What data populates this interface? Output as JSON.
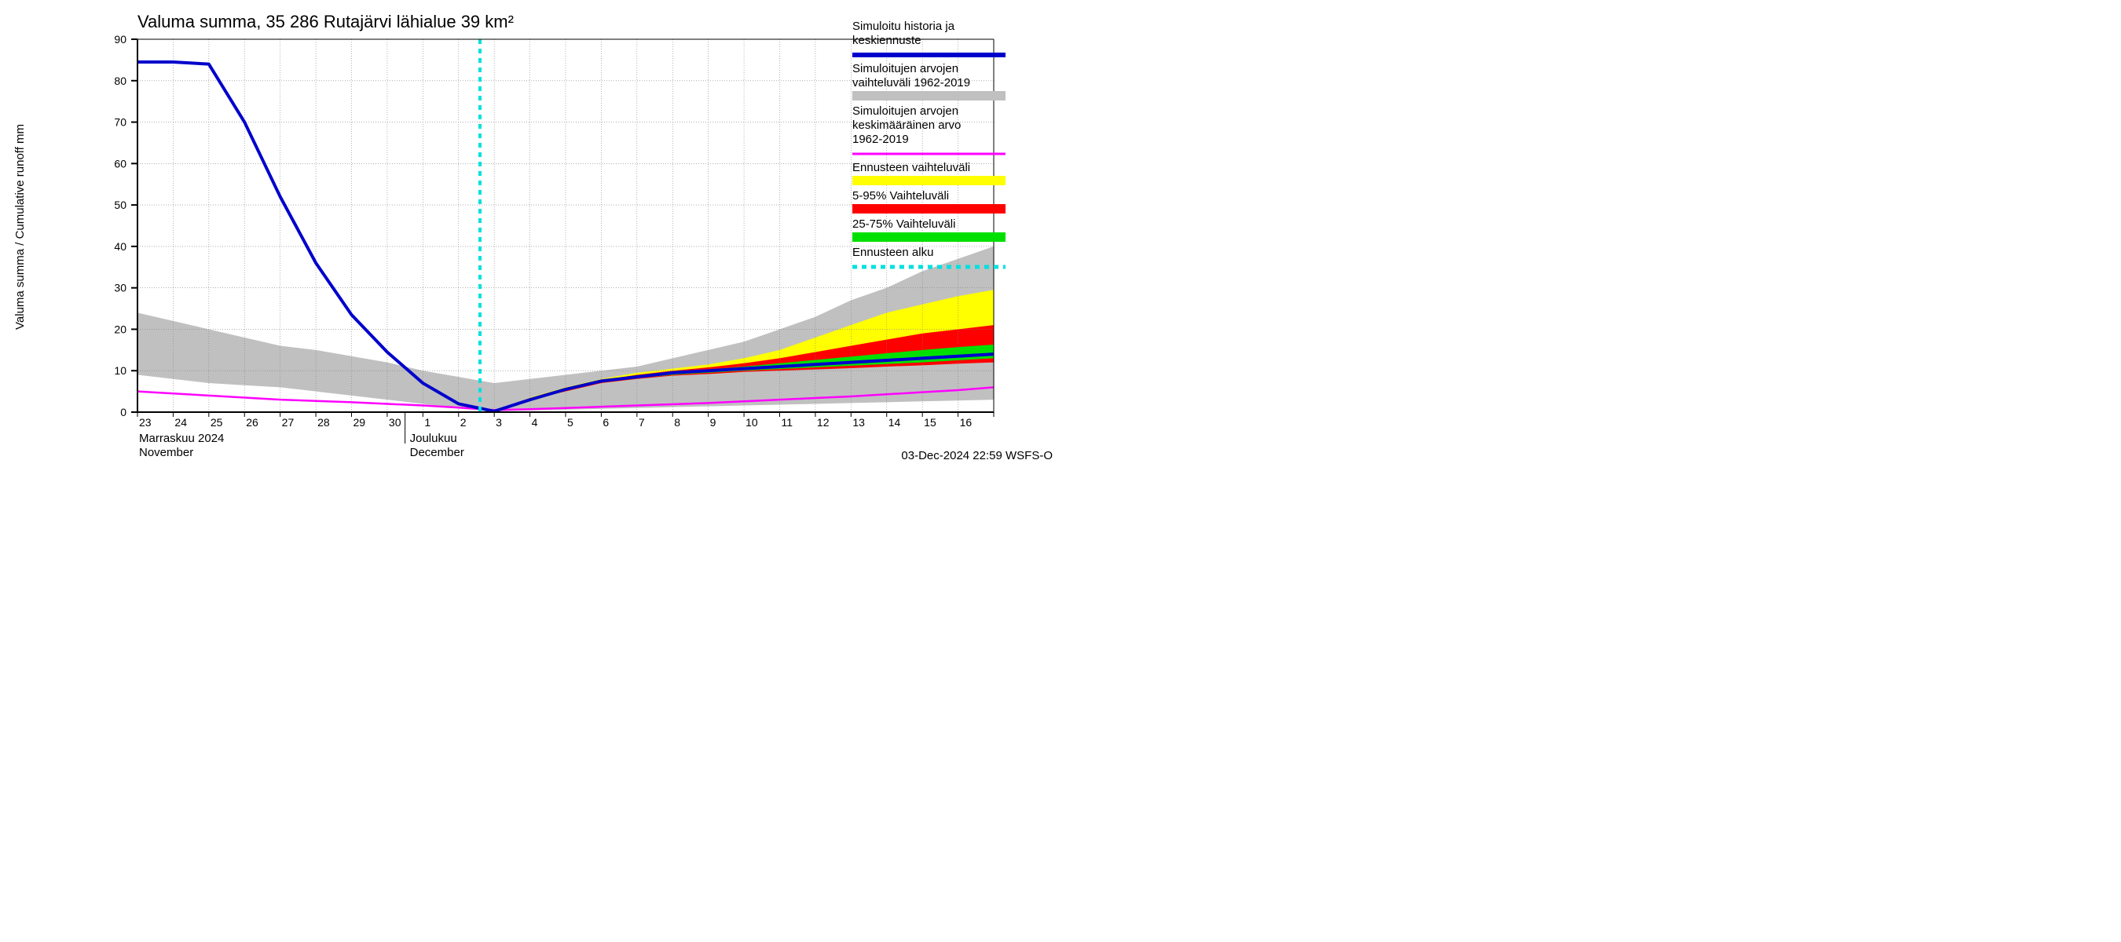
{
  "chart": {
    "type": "line-area-forecast",
    "title": "Valuma summa, 35 286 Rutajärvi lähialue 39 km²",
    "title_fontsize": 22,
    "ylabel": "Valuma summa / Cumulative runoff    mm",
    "label_fontsize": 16,
    "background_color": "#ffffff",
    "plot_background": "#ffffff",
    "grid_color": "#808080",
    "grid_dash": "1,2",
    "axis_color": "#000000",
    "ylim": [
      0,
      90
    ],
    "ytick_step": 10,
    "yticks": [
      0,
      10,
      20,
      30,
      40,
      50,
      60,
      70,
      80,
      90
    ],
    "x_categories": [
      "23",
      "24",
      "25",
      "26",
      "27",
      "28",
      "29",
      "30",
      "1",
      "2",
      "3",
      "4",
      "5",
      "6",
      "7",
      "8",
      "9",
      "10",
      "11",
      "12",
      "13",
      "14",
      "15",
      "16",
      ""
    ],
    "x_index_forecast_start": 9.6,
    "month_label_1": "Marraskuu 2024",
    "month_label_1_en": "November",
    "month_label_2": "Joulukuu",
    "month_label_2_en": "December",
    "footer": "03-Dec-2024 22:59 WSFS-O",
    "legend": {
      "l1a": "Simuloitu historia ja",
      "l1b": "keskiennuste",
      "l2a": "Simuloitujen arvojen",
      "l2b": "vaihteluväli 1962-2019",
      "l3a": "Simuloitujen arvojen",
      "l3b": "keskimääräinen arvo",
      "l3c": "  1962-2019",
      "l4": "Ennusteen vaihteluväli",
      "l5": "5-95% Vaihteluväli",
      "l6": "25-75% Vaihteluväli",
      "l7": "Ennusteen alku"
    },
    "colors": {
      "history_line": "#0000cc",
      "history_range_fill": "#c0c0c0",
      "mean_line": "#ff00ff",
      "forecast_range_fill": "#ffff00",
      "p5_95_fill": "#ff0000",
      "p25_75_fill": "#00e000",
      "forecast_start_line": "#00e0e0"
    },
    "line_widths": {
      "history": 4,
      "mean": 2.5,
      "forecast_dash": 4
    },
    "series": {
      "history_line": [
        84.5,
        84.5,
        84,
        70,
        52,
        36,
        23.5,
        14.5,
        7,
        2,
        0.2,
        3,
        5.5,
        7.5,
        8.5,
        9.5,
        10,
        10.5,
        11,
        11.5,
        12,
        12.5,
        13,
        13.5,
        14
      ],
      "grey_upper": [
        24,
        22,
        20,
        18,
        16,
        15,
        13.5,
        12,
        10,
        8.5,
        7,
        8,
        9,
        10,
        11,
        13,
        15,
        17,
        20,
        23,
        27,
        30,
        34,
        37,
        40
      ],
      "grey_lower": [
        9,
        8,
        7,
        6.5,
        6,
        5,
        4,
        3,
        2,
        1,
        0.2,
        0.4,
        0.6,
        0.8,
        1,
        1.2,
        1.4,
        1.6,
        1.8,
        2,
        2.2,
        2.4,
        2.6,
        2.8,
        3
      ],
      "yellow_upper": [
        0,
        0,
        0,
        0,
        0,
        0,
        0,
        0,
        0,
        0,
        0.2,
        3.5,
        6,
        8,
        9.5,
        10.5,
        11.5,
        13,
        15,
        18,
        21,
        24,
        26,
        28,
        29.5
      ],
      "yellow_lower": [
        0,
        0,
        0,
        0,
        0,
        0,
        0,
        0,
        0,
        0,
        0.2,
        3,
        5,
        7,
        8,
        9,
        9.5,
        10,
        10.5,
        11,
        11,
        11.5,
        12,
        12.5,
        13
      ],
      "red_upper": [
        0,
        0,
        0,
        0,
        0,
        0,
        0,
        0,
        0,
        0,
        0.2,
        3.2,
        5.7,
        7.7,
        9,
        10,
        10.8,
        11.8,
        13,
        14.5,
        16,
        17.5,
        19,
        20,
        21
      ],
      "red_lower": [
        0,
        0,
        0,
        0,
        0,
        0,
        0,
        0,
        0,
        0,
        0.2,
        3,
        5,
        7,
        8,
        8.8,
        9.2,
        9.7,
        10,
        10.3,
        10.6,
        11,
        11.3,
        11.7,
        12
      ],
      "green_upper": [
        0,
        0,
        0,
        0,
        0,
        0,
        0,
        0,
        0,
        0,
        0.2,
        3.1,
        5.5,
        7.5,
        8.7,
        9.6,
        10.3,
        11,
        11.8,
        12.6,
        13.4,
        14.2,
        15,
        15.7,
        16.3
      ],
      "green_lower": [
        0,
        0,
        0,
        0,
        0,
        0,
        0,
        0,
        0,
        0,
        0.2,
        3,
        5.3,
        7.2,
        8.2,
        9,
        9.5,
        10,
        10.4,
        10.8,
        11.2,
        11.6,
        12,
        12.5,
        13
      ],
      "mean_line": [
        5,
        4.5,
        4,
        3.5,
        3,
        2.7,
        2.4,
        2,
        1.6,
        1.1,
        0.5,
        0.7,
        1,
        1.3,
        1.6,
        1.9,
        2.2,
        2.6,
        3,
        3.4,
        3.8,
        4.3,
        4.8,
        5.3,
        6
      ]
    }
  }
}
